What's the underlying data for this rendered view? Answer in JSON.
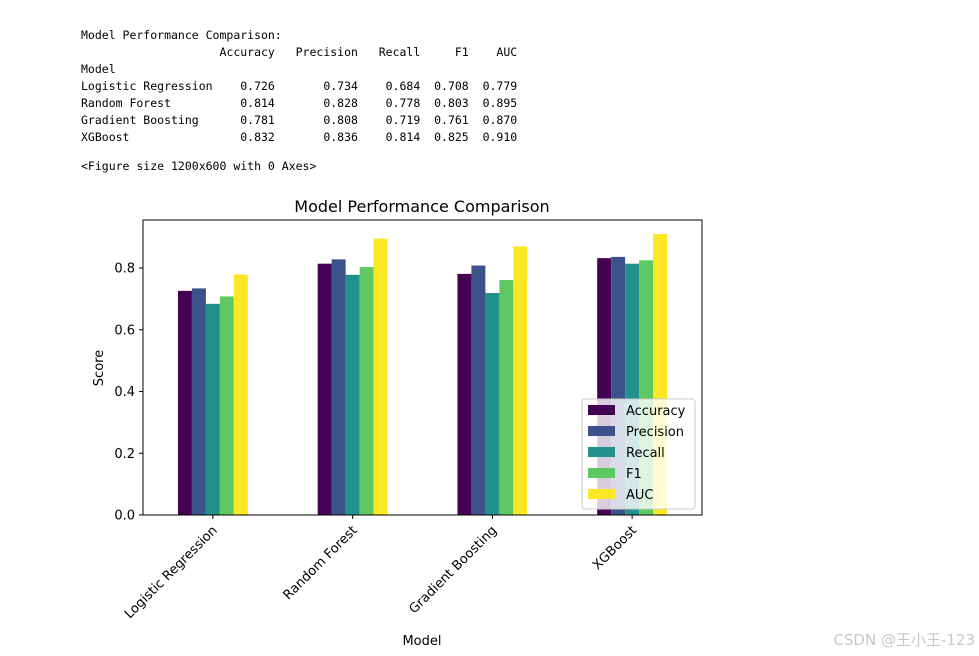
{
  "output": {
    "heading": "Model Performance Comparison:",
    "table_columns": [
      "Accuracy",
      "Precision",
      "Recall",
      "F1",
      "AUC"
    ],
    "index_name": "Model",
    "rows": [
      {
        "model": "Logistic Regression",
        "values": [
          "0.726",
          "0.734",
          "0.684",
          "0.708",
          "0.779"
        ]
      },
      {
        "model": "Random Forest",
        "values": [
          "0.814",
          "0.828",
          "0.778",
          "0.803",
          "0.895"
        ]
      },
      {
        "model": "Gradient Boosting",
        "values": [
          "0.781",
          "0.808",
          "0.719",
          "0.761",
          "0.870"
        ]
      },
      {
        "model": "XGBoost",
        "values": [
          "0.832",
          "0.836",
          "0.814",
          "0.825",
          "0.910"
        ]
      }
    ],
    "figure_size_text": "<Figure size 1200x600 with 0 Axes>"
  },
  "chart_data": {
    "type": "bar",
    "title": "Model Performance Comparison",
    "xlabel": "Model",
    "ylabel": "Score",
    "categories": [
      "Logistic Regression",
      "Random Forest",
      "Gradient Boosting",
      "XGBoost"
    ],
    "series": [
      {
        "name": "Accuracy",
        "color": "#440154",
        "values": [
          0.726,
          0.814,
          0.781,
          0.832
        ]
      },
      {
        "name": "Precision",
        "color": "#3b528b",
        "values": [
          0.734,
          0.828,
          0.808,
          0.836
        ]
      },
      {
        "name": "Recall",
        "color": "#21918c",
        "values": [
          0.684,
          0.778,
          0.719,
          0.814
        ]
      },
      {
        "name": "F1",
        "color": "#5ec962",
        "values": [
          0.708,
          0.803,
          0.761,
          0.825
        ]
      },
      {
        "name": "AUC",
        "color": "#fde725",
        "values": [
          0.779,
          0.895,
          0.87,
          0.91
        ]
      }
    ],
    "yticks": [
      "0.0",
      "0.2",
      "0.4",
      "0.6",
      "0.8"
    ],
    "ylim": [
      0,
      0.9555
    ],
    "legend_position": "lower-right",
    "grid": false
  },
  "watermark": "CSDN @王小王-123"
}
